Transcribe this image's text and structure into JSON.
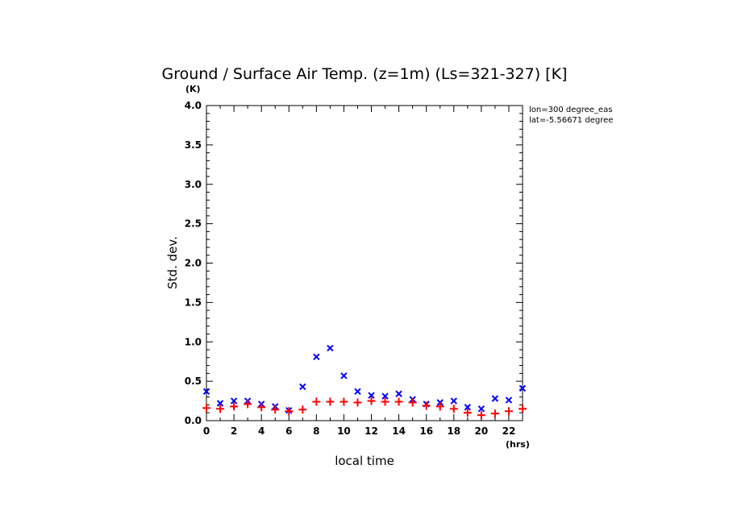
{
  "chart_data": {
    "type": "scatter",
    "title": "Ground / Surface Air Temp. (z=1m) (Ls=321-327) [K]",
    "xlabel": "local time",
    "ylabel": "Std. dev.",
    "x_unit": "(hrs)",
    "y_unit": "(K)",
    "annotations": [
      "lon=300 degree_eas",
      "lat=-5.56671 degree"
    ],
    "xlim": [
      0,
      23
    ],
    "ylim": [
      0,
      4.0
    ],
    "x_ticks": [
      "0",
      "2",
      "4",
      "6",
      "8",
      "10",
      "12",
      "14",
      "16",
      "18",
      "20",
      "22"
    ],
    "y_ticks": [
      "0.0",
      "0.5",
      "1.0",
      "1.5",
      "2.0",
      "2.5",
      "3.0",
      "3.5",
      "4.0"
    ],
    "grid": false,
    "x": [
      0,
      1,
      2,
      3,
      4,
      5,
      6,
      7,
      8,
      9,
      10,
      11,
      12,
      13,
      14,
      15,
      16,
      17,
      18,
      19,
      20,
      21,
      22,
      23
    ],
    "series": [
      {
        "marker": "x",
        "color": "#0000ff",
        "values": [
          0.37,
          0.22,
          0.25,
          0.25,
          0.21,
          0.18,
          0.13,
          0.43,
          0.81,
          0.92,
          0.57,
          0.37,
          0.32,
          0.31,
          0.34,
          0.27,
          0.21,
          0.23,
          0.25,
          0.17,
          0.15,
          0.28,
          0.26,
          0.41
        ]
      },
      {
        "marker": "+",
        "color": "#ff0000",
        "values": [
          0.16,
          0.15,
          0.18,
          0.21,
          0.17,
          0.14,
          0.12,
          0.14,
          0.24,
          0.24,
          0.24,
          0.23,
          0.25,
          0.24,
          0.24,
          0.23,
          0.19,
          0.18,
          0.15,
          0.1,
          0.07,
          0.09,
          0.12,
          0.15
        ]
      }
    ]
  }
}
